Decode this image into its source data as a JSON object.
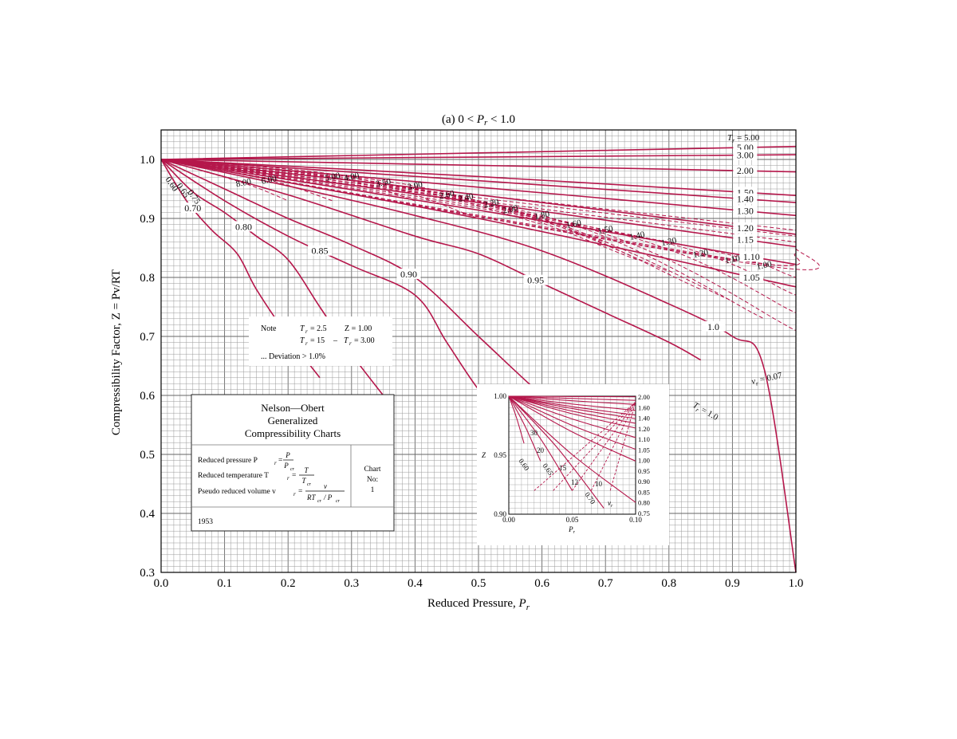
{
  "chart_data": {
    "type": "line",
    "title": "(a) 0 < Pr < 1.0",
    "xlabel": "Reduced Pressure, Pr",
    "ylabel": "Compressibility Factor, Z = Pv/RT",
    "xlim": [
      0.0,
      1.0
    ],
    "ylim": [
      0.3,
      1.05
    ],
    "x_ticks": [
      "0.0",
      "0.1",
      "0.2",
      "0.3",
      "0.4",
      "0.5",
      "0.6",
      "0.7",
      "0.8",
      "0.9",
      "1.0"
    ],
    "y_ticks": [
      "0.3",
      "0.4",
      "0.5",
      "0.6",
      "0.7",
      "0.8",
      "0.9",
      "1.0"
    ],
    "grid": true,
    "colors": {
      "curves": "#b5174b",
      "grid": "#9a9a9a",
      "axes": "#000000"
    },
    "series": [
      {
        "label": "5.00",
        "label_x": 0.92,
        "points": [
          [
            0,
            1.0
          ],
          [
            0.5,
            1.011
          ],
          [
            1.0,
            1.022
          ]
        ]
      },
      {
        "label": "3.00",
        "label_x": 0.92,
        "points": [
          [
            0,
            1.0
          ],
          [
            0.5,
            1.004
          ],
          [
            1.0,
            1.008
          ]
        ]
      },
      {
        "label": "2.00",
        "label_x": 0.92,
        "points": [
          [
            0,
            1.0
          ],
          [
            0.5,
            0.99
          ],
          [
            1.0,
            0.979
          ]
        ]
      },
      {
        "label": "1.50",
        "label_x": 0.92,
        "points": [
          [
            0,
            1.0
          ],
          [
            0.5,
            0.971
          ],
          [
            1.0,
            0.939
          ]
        ]
      },
      {
        "label": "1.40",
        "label_x": 0.92,
        "points": [
          [
            0,
            1.0
          ],
          [
            0.5,
            0.964
          ],
          [
            1.0,
            0.927
          ]
        ]
      },
      {
        "label": "1.30",
        "label_x": 0.92,
        "points": [
          [
            0,
            1.0
          ],
          [
            0.5,
            0.953
          ],
          [
            1.0,
            0.905
          ]
        ]
      },
      {
        "label": "1.20",
        "label_x": 0.92,
        "points": [
          [
            0,
            1.0
          ],
          [
            0.5,
            0.94
          ],
          [
            1.0,
            0.873
          ]
        ]
      },
      {
        "label": "1.15",
        "label_x": 0.92,
        "points": [
          [
            0,
            1.0
          ],
          [
            0.5,
            0.927
          ],
          [
            1.0,
            0.852
          ]
        ]
      },
      {
        "label": "1.10",
        "label_x": 0.93,
        "points": [
          [
            0,
            1.0
          ],
          [
            0.5,
            0.914
          ],
          [
            1.0,
            0.822
          ]
        ]
      },
      {
        "label": "1.05",
        "label_x": 0.93,
        "points": [
          [
            0,
            1.0
          ],
          [
            0.5,
            0.9
          ],
          [
            1.0,
            0.784
          ]
        ]
      },
      {
        "label": "1.0",
        "label_x": 0.87,
        "points": [
          [
            0,
            1.0
          ],
          [
            0.2,
            0.955
          ],
          [
            0.4,
            0.905
          ],
          [
            0.6,
            0.845
          ],
          [
            0.8,
            0.755
          ],
          [
            0.9,
            0.7
          ],
          [
            0.95,
            0.645
          ],
          [
            1.0,
            0.3
          ]
        ]
      },
      {
        "label": "0.95",
        "label_x": 0.59,
        "points": [
          [
            0,
            1.0
          ],
          [
            0.2,
            0.94
          ],
          [
            0.4,
            0.87
          ],
          [
            0.5,
            0.84
          ],
          [
            0.6,
            0.79
          ],
          [
            0.7,
            0.74
          ],
          [
            0.8,
            0.69
          ],
          [
            0.85,
            0.66
          ]
        ]
      },
      {
        "label": "0.90",
        "label_x": 0.39,
        "points": [
          [
            0,
            1.0
          ],
          [
            0.1,
            0.95
          ],
          [
            0.2,
            0.9
          ],
          [
            0.3,
            0.855
          ],
          [
            0.4,
            0.8
          ],
          [
            0.5,
            0.7
          ],
          [
            0.6,
            0.6
          ],
          [
            0.7,
            0.51
          ]
        ]
      },
      {
        "label": "0.85",
        "label_x": 0.25,
        "points": [
          [
            0,
            1.0
          ],
          [
            0.1,
            0.93
          ],
          [
            0.2,
            0.87
          ],
          [
            0.3,
            0.82
          ],
          [
            0.4,
            0.77
          ],
          [
            0.45,
            0.69
          ],
          [
            0.5,
            0.61
          ],
          [
            0.55,
            0.55
          ]
        ]
      },
      {
        "label": "0.80",
        "label_x": 0.13,
        "points": [
          [
            0,
            1.0
          ],
          [
            0.05,
            0.945
          ],
          [
            0.1,
            0.91
          ],
          [
            0.15,
            0.87
          ],
          [
            0.2,
            0.83
          ],
          [
            0.25,
            0.75
          ],
          [
            0.3,
            0.67
          ],
          [
            0.35,
            0.6
          ]
        ]
      },
      {
        "label": "0.70",
        "label_x": 0.05,
        "points": [
          [
            0,
            1.0
          ],
          [
            0.04,
            0.93
          ],
          [
            0.08,
            0.88
          ],
          [
            0.12,
            0.84
          ],
          [
            0.15,
            0.78
          ],
          [
            0.2,
            0.7
          ],
          [
            0.25,
            0.63
          ]
        ]
      }
    ],
    "vr_series": [
      {
        "label": "8.00",
        "points": [
          [
            0.0,
            1.0
          ],
          [
            0.13,
            0.96
          ],
          [
            0.2,
            0.93
          ]
        ]
      },
      {
        "label": "6.00",
        "points": [
          [
            0.0,
            1.0
          ],
          [
            0.17,
            0.965
          ],
          [
            0.27,
            0.93
          ]
        ]
      },
      {
        "label": "5.00",
        "points": [
          [
            0.0,
            1.0
          ],
          [
            0.27,
            0.97
          ],
          [
            0.4,
            0.93
          ]
        ]
      },
      {
        "label": "4.00",
        "points": [
          [
            0.0,
            1.0
          ],
          [
            0.3,
            0.97
          ],
          [
            0.5,
            0.9
          ]
        ]
      },
      {
        "label": "3.50",
        "points": [
          [
            0.0,
            1.0
          ],
          [
            0.35,
            0.96
          ],
          [
            0.6,
            0.89
          ]
        ]
      },
      {
        "label": "3.00",
        "points": [
          [
            0.0,
            1.0
          ],
          [
            0.4,
            0.955
          ],
          [
            0.7,
            0.86
          ]
        ]
      },
      {
        "label": "2.60",
        "points": [
          [
            0.0,
            1.0
          ],
          [
            0.45,
            0.94
          ],
          [
            0.75,
            0.83
          ]
        ]
      },
      {
        "label": "2.40",
        "points": [
          [
            0.0,
            1.0
          ],
          [
            0.48,
            0.935
          ],
          [
            0.8,
            0.81
          ]
        ]
      },
      {
        "label": "2.20",
        "points": [
          [
            0.0,
            1.0
          ],
          [
            0.52,
            0.925
          ],
          [
            0.85,
            0.78
          ]
        ]
      },
      {
        "label": "2.00",
        "points": [
          [
            0.0,
            1.0
          ],
          [
            0.55,
            0.915
          ],
          [
            0.9,
            0.76
          ]
        ]
      },
      {
        "label": "1.80",
        "points": [
          [
            0.0,
            1.0
          ],
          [
            0.6,
            0.905
          ],
          [
            0.95,
            0.73
          ]
        ]
      },
      {
        "label": "1.60",
        "points": [
          [
            0.0,
            1.0
          ],
          [
            0.65,
            0.89
          ],
          [
            1.0,
            0.71
          ]
        ]
      },
      {
        "label": "1.50",
        "points": [
          [
            0.0,
            1.0
          ],
          [
            0.7,
            0.88
          ],
          [
            1.0,
            0.74
          ]
        ]
      },
      {
        "label": "1.40",
        "points": [
          [
            0.0,
            1.0
          ],
          [
            0.75,
            0.87
          ],
          [
            1.0,
            0.77
          ]
        ]
      },
      {
        "label": "1.30",
        "points": [
          [
            0.0,
            1.0
          ],
          [
            0.8,
            0.86
          ],
          [
            1.0,
            0.8
          ]
        ]
      },
      {
        "label": "1.20",
        "points": [
          [
            0.0,
            1.0
          ],
          [
            0.85,
            0.84
          ],
          [
            1.0,
            0.82
          ]
        ]
      },
      {
        "label": "1.10",
        "points": [
          [
            0.0,
            1.0
          ],
          [
            0.9,
            0.83
          ],
          [
            1.0,
            0.84
          ]
        ]
      },
      {
        "label": "1.00",
        "points": [
          [
            0.0,
            1.0
          ],
          [
            0.95,
            0.82
          ],
          [
            1.0,
            0.85
          ]
        ]
      },
      {
        "label": "0.90",
        "points": [
          [
            0.0,
            1.0
          ],
          [
            1.0,
            0.86
          ]
        ]
      },
      {
        "label": "0.80",
        "points": [
          [
            0.0,
            1.0
          ],
          [
            1.0,
            0.87
          ]
        ]
      },
      {
        "label": "0.07",
        "points": [
          [
            0.0,
            1.0
          ],
          [
            1.0,
            0.88
          ]
        ]
      }
    ],
    "annotations": {
      "tr_label": "T",
      "tr_sub": "r",
      "tr_top_value": "= 5.00",
      "tr_bottom_value": "= 1.0",
      "vr_label": "v",
      "vr_sub": "r",
      "vr_value": "= 0.07",
      "left_cluster_labels": [
        "0.60",
        "0.65",
        "0.75"
      ]
    },
    "note_box": {
      "note": "Note",
      "line1_a": "T",
      "line1_a_sub": "r",
      "line1_b": "= 2.5",
      "line1_c": "Z = 1.00",
      "line2_a": "T",
      "line2_a_sub": "r",
      "line2_b": "= 15",
      "line2_c": "–",
      "line2_d": "T",
      "line2_d_sub": "r",
      "line2_e": "= 3.00",
      "line3": "... Deviation > 1.0%"
    },
    "title_box": {
      "title_lines": [
        "Nelson—Obert",
        "Generalized",
        "Compressibility Charts"
      ],
      "row1": "Reduced pressure P",
      "row1_sub": "r",
      "row1_num": "P",
      "row1_den": "P",
      "row1_den_sub": "cr",
      "row2": "Reduced temperature T",
      "row2_sub": "r",
      "row2_num": "T",
      "row2_den": "T",
      "row2_den_sub": "cr",
      "row3": "Pseudo reduced volume v",
      "row3_sub": "r",
      "row3_num": "v",
      "row3_den": "RT",
      "row3_den_sub": "cr",
      "row3_den_tail": "/ P",
      "row3_den_tail_sub": "cr",
      "chart_label": "Chart",
      "chart_no": "No:",
      "chart_num": "1",
      "year": "1953"
    },
    "inset": {
      "xlabel": "P",
      "xlabel_sub": "r",
      "ylabel": "Z",
      "x_ticks": [
        "0.00",
        "0.05",
        "0.10"
      ],
      "y_ticks": [
        "0.90",
        "0.95",
        "1.00"
      ],
      "xlim": [
        0.0,
        0.1
      ],
      "ylim": [
        0.9,
        1.0
      ],
      "right_labels": [
        "2.00",
        "1.60",
        "1.40",
        "1.20",
        "1.10",
        "1.05",
        "1.00",
        "0.95",
        "0.90",
        "0.85",
        "0.80",
        "0.75"
      ],
      "right_values": [
        0.9995,
        0.9965,
        0.993,
        0.988,
        0.984,
        0.981,
        0.977,
        0.973,
        0.965,
        0.955,
        0.945,
        0.91
      ],
      "inner_labels": [
        "30",
        "20",
        "15",
        "12",
        "10",
        "0.60",
        "0.65",
        "0.70"
      ],
      "vr_label": "v",
      "vr_sub": "r"
    }
  }
}
